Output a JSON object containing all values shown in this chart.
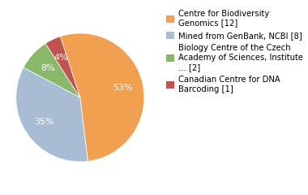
{
  "slices": [
    52,
    34,
    8,
    4
  ],
  "labels": [
    "Centre for Biodiversity\nGenomics [12]",
    "Mined from GenBank, NCBI [8]",
    "Biology Centre of the Czech\nAcademy of Sciences, Institute\n... [2]",
    "Canadian Centre for DNA\nBarcoding [1]"
  ],
  "colors": [
    "#f0a050",
    "#a8bdd4",
    "#8ab86a",
    "#c0534d"
  ],
  "startangle": 108,
  "legend_fontsize": 7.2,
  "autopct_fontsize": 8,
  "text_color": "white"
}
